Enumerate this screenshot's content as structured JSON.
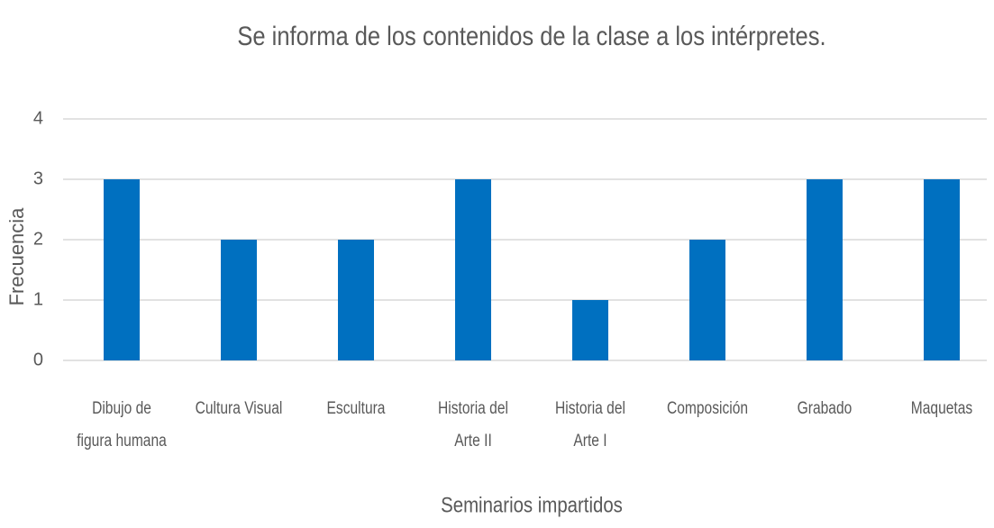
{
  "chart_data": {
    "type": "bar",
    "title": "Se informa de los contenidos de la clase a los intérpretes.",
    "x_label": "Seminarios impartidos",
    "y_label": "Frecuencia",
    "categories": [
      "Dibujo de figura humana",
      "Cultura Visual",
      "Escultura",
      "Historia del Arte II",
      "Historia del Arte I",
      "Composición",
      "Grabado",
      "Maquetas"
    ],
    "values": [
      3,
      2,
      2,
      3,
      1,
      2,
      3,
      3
    ],
    "color": "#0070c0",
    "ylim": [
      0,
      4
    ],
    "yticks": [
      0,
      1,
      2,
      3,
      4
    ],
    "grid": true
  }
}
